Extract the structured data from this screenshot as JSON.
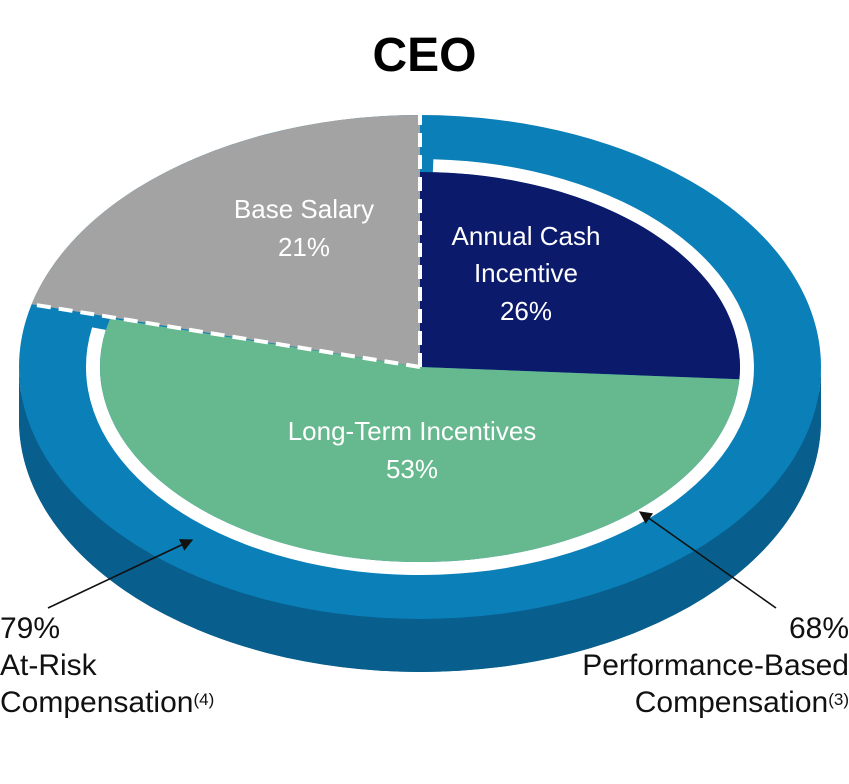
{
  "chart_data": {
    "type": "pie",
    "title": "CEO",
    "slices": [
      {
        "label": "Base Salary",
        "value": 21,
        "value_label": "21%",
        "color": "#a3a3a3"
      },
      {
        "label": "Annual Cash Incentive",
        "label_lines": [
          "Annual Cash",
          "Incentive"
        ],
        "value": 26,
        "value_label": "26%",
        "color": "#0b1a6b"
      },
      {
        "label": "Long-Term Incentives",
        "value": 53,
        "value_label": "53%",
        "color": "#66b88e"
      }
    ],
    "callouts": [
      {
        "value": "79%",
        "label_lines": [
          "At-Risk",
          "Compensation"
        ],
        "footnote": "(4)"
      },
      {
        "value": "68%",
        "label_lines": [
          "Performance-Based",
          "Compensation"
        ],
        "footnote": "(3)"
      }
    ],
    "colors": {
      "ring_top": "#0a7fb8",
      "ring_side": "#085f8d",
      "slice_label_text": "#ffffff"
    }
  }
}
